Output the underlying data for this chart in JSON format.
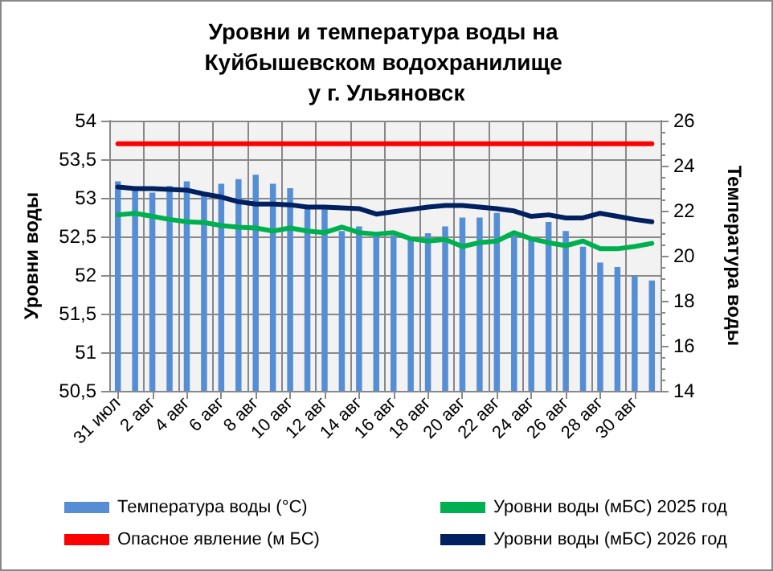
{
  "chart_data": {
    "type": "line",
    "title": "Уровни и температура воды на Куйбышевском водохранилище у г. Ульяновск",
    "ylabel": "Уровни воды",
    "y2label": "Температура воды",
    "categories": [
      "31 июл",
      null,
      "2 авг",
      null,
      "4 авг",
      null,
      "6 авг",
      null,
      "8 авг",
      null,
      "10 авг",
      null,
      "12 авг",
      null,
      "14 авг",
      null,
      "16 авг",
      null,
      "18 авг",
      null,
      "20 авг",
      null,
      "22 авг",
      null,
      "24 авг",
      null,
      "26 авг",
      null,
      "28 авг",
      null,
      "30 авг",
      null
    ],
    "series": [
      {
        "name": "Температура воды (°C)",
        "type": "bar",
        "axis": "y2",
        "color": "#558ed5",
        "values": [
          23.3,
          23.0,
          22.8,
          23.1,
          23.3,
          22.8,
          23.2,
          23.4,
          23.6,
          23.2,
          23.0,
          22.2,
          22.2,
          21.1,
          21.3,
          20.9,
          20.9,
          20.7,
          21.0,
          21.3,
          21.7,
          21.7,
          21.9,
          20.9,
          20.8,
          21.5,
          21.1,
          20.4,
          19.7,
          19.5,
          19.1,
          18.9
        ]
      },
      {
        "name": "Уровни воды (мБС) 2025 год",
        "color": "#00b050",
        "values": [
          52.78,
          52.8,
          52.76,
          52.72,
          52.69,
          52.68,
          52.64,
          52.62,
          52.61,
          52.57,
          52.61,
          52.57,
          52.55,
          52.62,
          52.55,
          52.53,
          52.55,
          52.47,
          52.44,
          52.46,
          52.37,
          52.42,
          52.44,
          52.55,
          52.47,
          52.42,
          52.38,
          52.44,
          52.34,
          52.34,
          52.37,
          52.41
        ]
      },
      {
        "name": "Опасное явление (м БС)",
        "color": "#ff0000",
        "values": [
          53.7,
          53.7,
          53.7,
          53.7,
          53.7,
          53.7,
          53.7,
          53.7,
          53.7,
          53.7,
          53.7,
          53.7,
          53.7,
          53.7,
          53.7,
          53.7,
          53.7,
          53.7,
          53.7,
          53.7,
          53.7,
          53.7,
          53.7,
          53.7,
          53.7,
          53.7,
          53.7,
          53.7,
          53.7,
          53.7,
          53.7,
          53.7
        ]
      },
      {
        "name": "Уровни воды (мБС) 2026 год",
        "color": "#002060",
        "values": [
          53.14,
          53.12,
          53.12,
          53.11,
          53.1,
          53.05,
          53.01,
          52.95,
          52.92,
          52.92,
          52.91,
          52.88,
          52.88,
          52.87,
          52.86,
          52.79,
          52.82,
          52.85,
          52.88,
          52.9,
          52.9,
          52.88,
          52.86,
          52.83,
          52.76,
          52.78,
          52.74,
          52.74,
          52.8,
          52.76,
          52.72,
          52.69
        ]
      }
    ],
    "ylim": [
      50.5,
      54
    ],
    "yticks": [
      {
        "value": 50.5,
        "label": "50,5"
      },
      51,
      {
        "value": 51.5,
        "label": "51,5"
      },
      52,
      {
        "value": 52.5,
        "label": "52,5"
      },
      53,
      {
        "value": 53.5,
        "label": "53,5"
      },
      54
    ],
    "y2lim": [
      14,
      26
    ],
    "y2ticks": [
      14,
      16,
      18,
      20,
      22,
      24,
      26
    ],
    "grid": true,
    "legend": "bottom",
    "marker": "none",
    "line_style": "solid"
  }
}
